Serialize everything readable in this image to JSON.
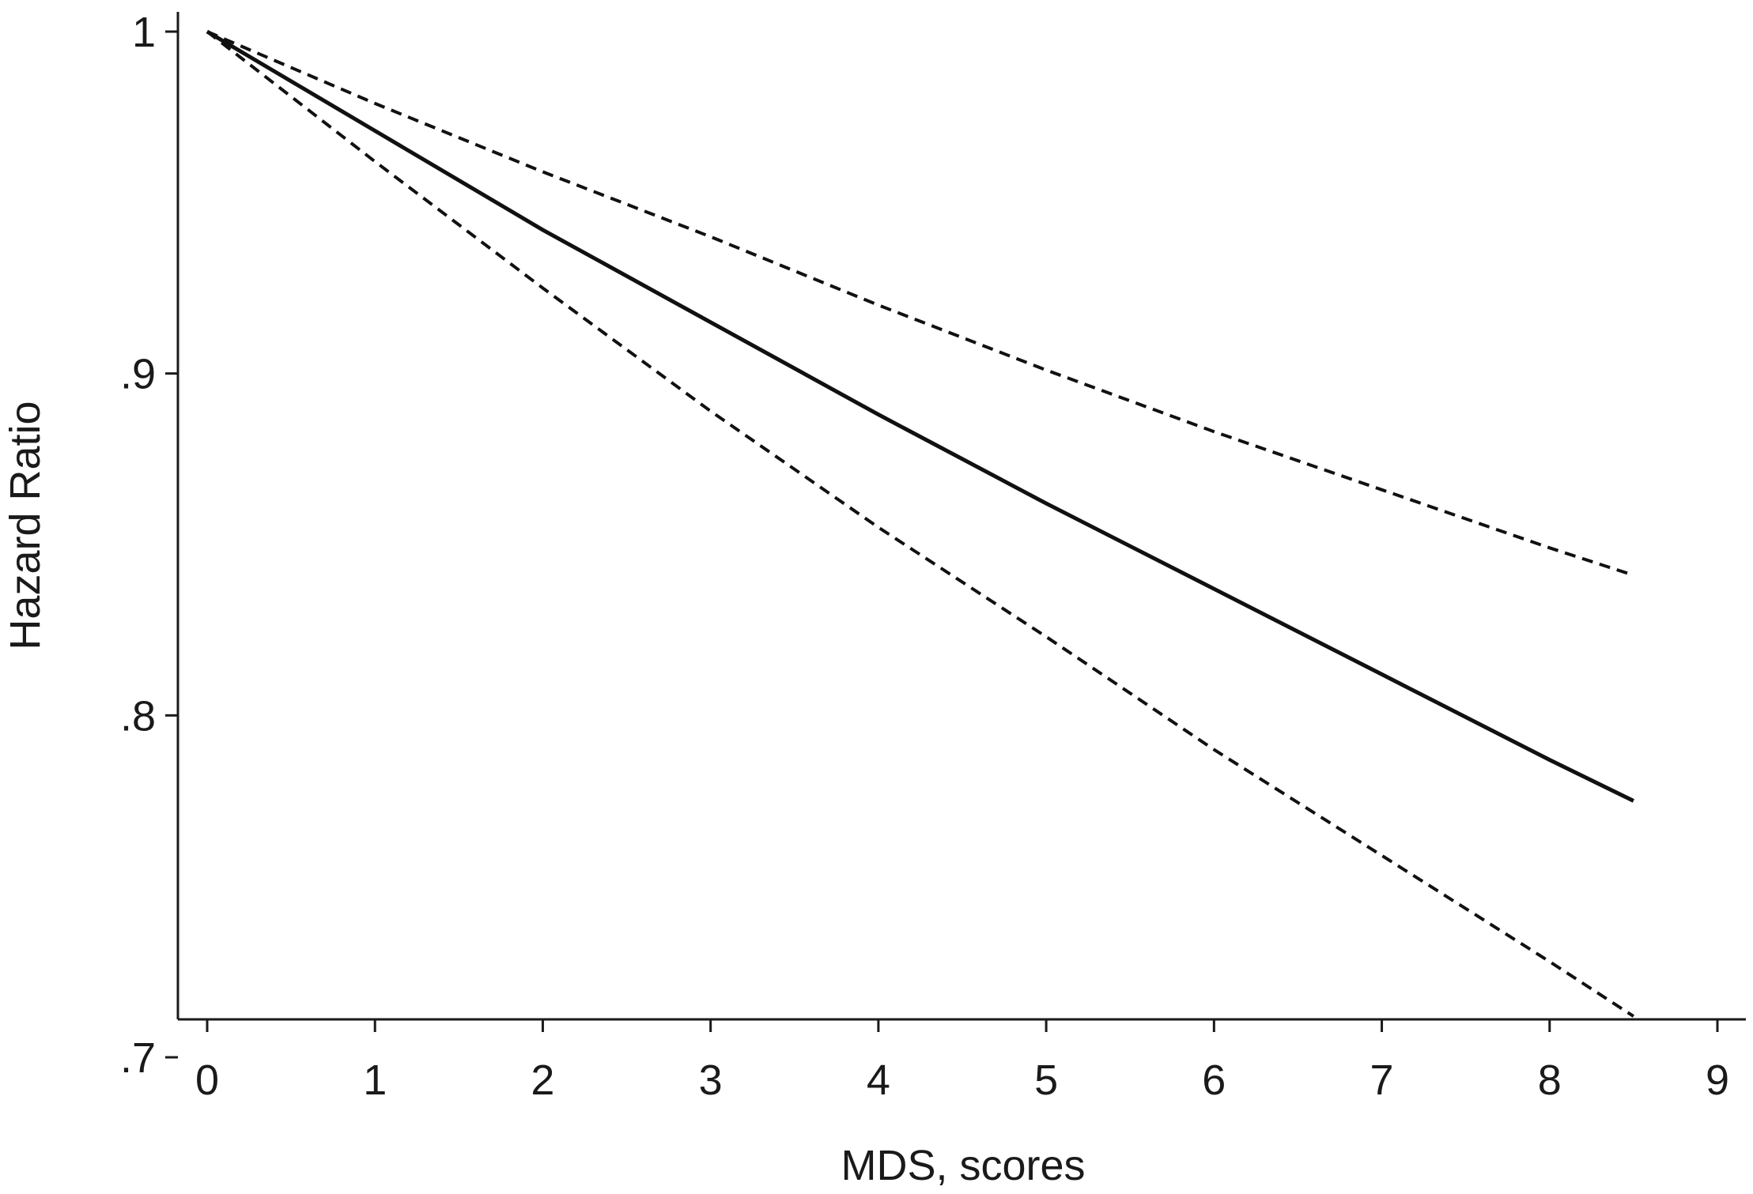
{
  "chart_data": {
    "type": "line",
    "title": "",
    "xlabel": "MDS, scores",
    "ylabel": "Hazard Ratio",
    "xlim": [
      0,
      9
    ],
    "ylim": [
      0.7,
      1.0
    ],
    "xticks": [
      0,
      1,
      2,
      3,
      4,
      5,
      6,
      7,
      8,
      9
    ],
    "xtick_labels": [
      "0",
      "1",
      "2",
      "3",
      "4",
      "5",
      "6",
      "7",
      "8",
      "9"
    ],
    "yticks": [
      0.7,
      0.8,
      0.9,
      1.0
    ],
    "ytick_labels": [
      ".7",
      ".8",
      ".9",
      "1"
    ],
    "grid": false,
    "legend": "none",
    "series": [
      {
        "style": "solid",
        "x": [
          0,
          1,
          2,
          3,
          4,
          5,
          6,
          7,
          8,
          8.5
        ],
        "y": [
          1.0,
          0.971,
          0.942,
          0.915,
          0.888,
          0.862,
          0.837,
          0.812,
          0.787,
          0.775
        ]
      },
      {
        "style": "dashed",
        "x": [
          0,
          1,
          2,
          3,
          4,
          5,
          6,
          7,
          8,
          8.5
        ],
        "y": [
          1.0,
          0.979,
          0.959,
          0.94,
          0.92,
          0.901,
          0.883,
          0.866,
          0.849,
          0.841
        ]
      },
      {
        "style": "dashed",
        "x": [
          0,
          1,
          2,
          3,
          4,
          5,
          6,
          7,
          8,
          8.5
        ],
        "y": [
          1.0,
          0.962,
          0.925,
          0.889,
          0.855,
          0.823,
          0.79,
          0.759,
          0.728,
          0.712
        ]
      }
    ]
  }
}
